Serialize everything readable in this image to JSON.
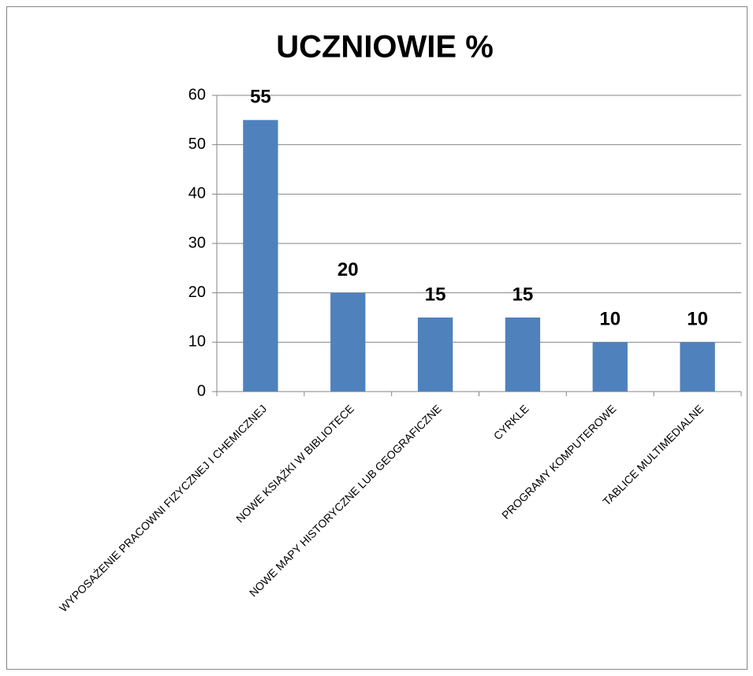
{
  "chart_data": {
    "type": "bar",
    "title": "UCZNIOWIE %",
    "categories": [
      "WYPOSAŻENIE PRACOWNI FIZYCZNEJ I CHEMICZNEJ",
      "NOWE KSIĄŻKI W BIBLIOTECE",
      "NOWE MAPY HISTORYCZNE LUB GEOGRAFICZNE",
      "CYRKLE",
      "PROGRAMY KOMPUTEROWE",
      "TABLICE MULTIMEDIALNE"
    ],
    "values": [
      55,
      20,
      15,
      15,
      10,
      10
    ],
    "color": "#4f81bd",
    "ylim": [
      0,
      60
    ],
    "yticks": [
      0,
      10,
      20,
      30,
      40,
      50,
      60
    ],
    "grid": true
  }
}
